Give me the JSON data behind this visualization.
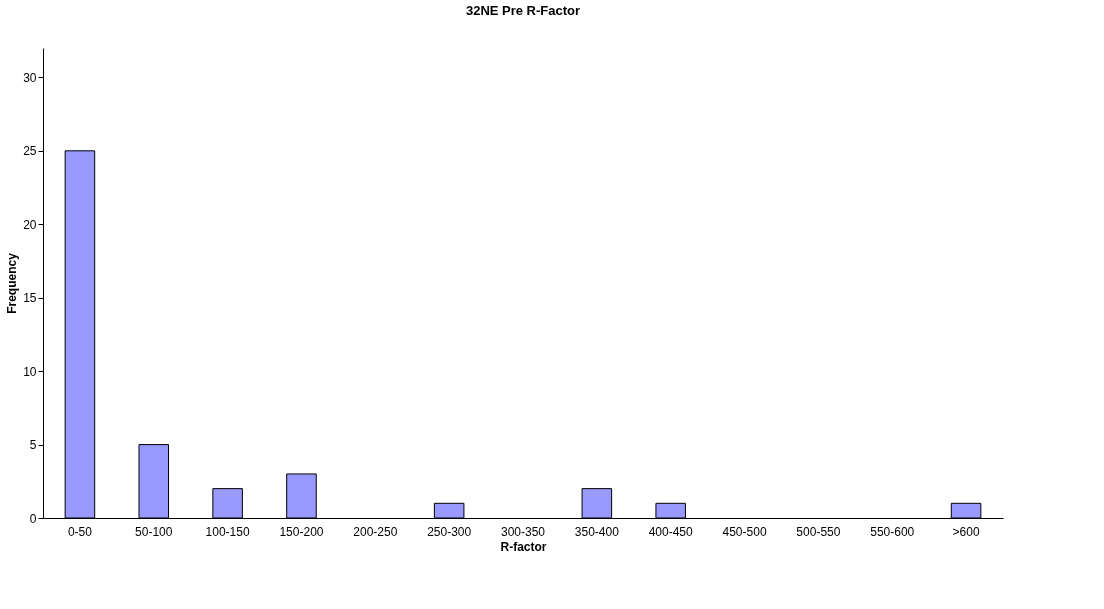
{
  "chart_data": {
    "type": "bar",
    "title": "32NE Pre R-Factor",
    "xlabel": "R-factor",
    "ylabel": "Frequency",
    "categories": [
      "0-50",
      "50-100",
      "100-150",
      "150-200",
      "200-250",
      "250-300",
      "300-350",
      "350-400",
      "400-450",
      "450-500",
      "500-550",
      "550-600",
      ">600"
    ],
    "values": [
      25,
      5,
      2,
      3,
      0,
      1,
      0,
      2,
      1,
      0,
      0,
      0,
      1
    ],
    "color": "#9999ff",
    "ylim": [
      0,
      32
    ],
    "yticks": [
      0,
      5,
      10,
      15,
      20,
      25,
      30
    ],
    "grid": false
  }
}
